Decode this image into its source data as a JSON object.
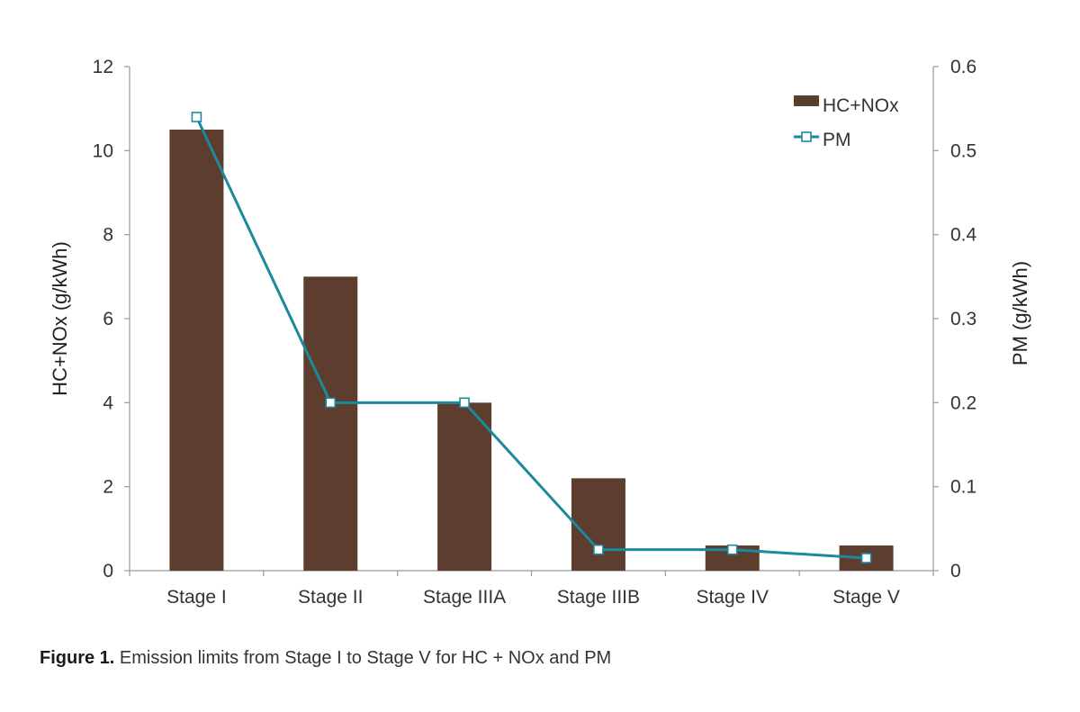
{
  "chart_data": {
    "type": "bar",
    "categories": [
      "Stage I",
      "Stage II",
      "Stage IIIA",
      "Stage IIIB",
      "Stage IV",
      "Stage V"
    ],
    "series": [
      {
        "name": "HC+NOx",
        "type": "bar",
        "axis": "left",
        "values": [
          10.5,
          7.0,
          4.0,
          2.2,
          0.6,
          0.6
        ]
      },
      {
        "name": "PM",
        "type": "line",
        "axis": "right",
        "values": [
          0.54,
          0.2,
          0.2,
          0.025,
          0.025,
          0.015
        ]
      }
    ],
    "ylabel": "HC+NOx (g/kWh)",
    "y2label": "PM (g/kWh)",
    "ylim": [
      0,
      12
    ],
    "y2lim": [
      0,
      0.6
    ],
    "yticks": [
      "0",
      "2",
      "4",
      "6",
      "8",
      "10",
      "12"
    ],
    "y2ticks": [
      "0",
      "0.1",
      "0.2",
      "0.3",
      "0.4",
      "0.5",
      "0.6"
    ],
    "grid": false,
    "legend": "top-right",
    "colors": {
      "bar": "#5c3d2e",
      "line": "#1a8a9c",
      "axis": "#9a9a9a"
    }
  },
  "caption": {
    "label": "Figure 1.",
    "text": "Emission limits from Stage I to Stage V for HC + NOx and PM"
  }
}
